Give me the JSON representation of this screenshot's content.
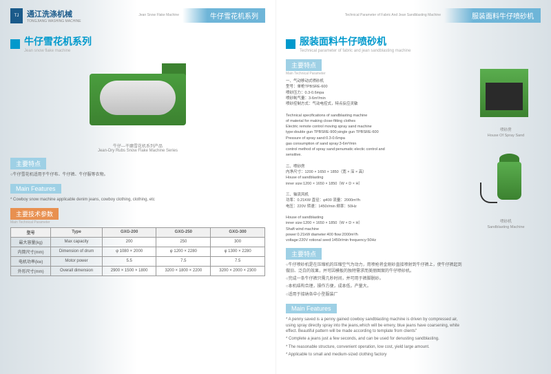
{
  "brand": {
    "cn": "通江洗涤机械",
    "en": "TONGJIANG WASHING MACHINE",
    "logo": "TJ"
  },
  "left": {
    "header": {
      "en": "Jean Snow Flake Machine",
      "cn": "牛仔雪花机系列"
    },
    "title": {
      "cn": "牛仔雪花机系列",
      "en": "Jean snow flake machine"
    },
    "img_caption": {
      "cn": "牛仔—干磨雪花机系列产品",
      "en": "Jean-Dry Rubs Snow Flake Machine Series"
    },
    "features": {
      "label_cn": "主要特点",
      "label_en": "Main Features",
      "text_cn": "○牛仔雪花机适用于牛仔布、牛仔裤、牛仔服等衣物。",
      "text_en": "* Cowboy snow machine applicable denim jeans, cowboy clothing, clothing, etc"
    },
    "params": {
      "label_cn": "主要技术参数",
      "label_en": "Main Technical Parameter"
    },
    "table": {
      "headers": [
        "型号",
        "Type",
        "GXG-200",
        "GXG-250",
        "GXG-300"
      ],
      "rows": [
        [
          "最大容量(kg)",
          "Max capacity",
          "200",
          "250",
          "300"
        ],
        [
          "内筒尺寸(mm)",
          "Dimension of drum",
          "φ 1080 × 2000",
          "φ 1200 × 2280",
          "φ 1300 × 2280"
        ],
        [
          "电机功率(kw)",
          "Motor power",
          "5.5",
          "7.5",
          "7.5"
        ],
        [
          "外形尺寸(mm)",
          "Overall dimension",
          "2900 × 1500 × 1800",
          "3200 × 1800 × 2200",
          "3200 × 2000 × 2300"
        ]
      ]
    }
  },
  "right": {
    "header": {
      "en": "Technical Parameter of Fabric And Jean Sandblasting Machine",
      "cn": "服装面料牛仔喷砂机"
    },
    "title": {
      "cn": "服装面料牛仔喷砂机",
      "en": "Technical parameter of fabric and jean sandblasting machine"
    },
    "features_label": {
      "cn": "主要特点",
      "en": "Main Technical Parameter"
    },
    "spec_block": "一、气动移动式喷砂机\n型号：单枪TPBSRE-600\n喷砂压力：0.3-0.6mpa\n喷砂耗气量：3-6m³/min\n喷砂控制方式：气动电控式，特点反应灵敏\n\nTechnical specifications of sandblasting machine\nof material for making close-fitting clothes\nElectric remote control moving spray sand machine\ntype:double gun TPBSRE-900;single gun TPBSRE-600\nPressure of spray sand:0.3-0.6mpa\ngas consumption of sand spray:3-6m³/min\ncontrol method of spray sand:penumatic electic control and\nsensitive.\n\n二、喷砂房\n内净尺寸：1200 × 1650 × 1850（宽 × 深 × 高）\nHouse of sandblasting\ninner size:1200 × 1650 × 1850（W × D × H）\n\n三、轴流风机\n功率：0.21KW    直径：φ400    流量：2000m³/h\n电压：220V      转速：1450r/min    频率：50Hz\n\nHouse of sandblasting\ninner size:1200 × 1650 × 1850（W × D × H）\nShaft wind machine\npower:0.21kW    diameter:400    flow:2000m³/h\nvoltage:220V    rotional seed:1450r/min    frequency:50Hz",
    "features2": {
      "label_cn": "主要特点",
      "label_en": "Main Features",
      "cn1": "○牛仔喷砂机是在压缩机的压缩空气为动力，用喷枪将金刚砂直接喷射到牛仔裤上，使牛仔裤起到做旧、泛白的效果，并可因模板的独特需求而美丽图案的牛仔喷砂机。",
      "cn2": "○完成一条牛仔裤只需几秒时间，并可用于裤脚脱砂。",
      "cn3": "○本机结构合理，操作方便，成本低，产量大。",
      "cn4": "○适用于接纳各中小型服装厂",
      "en1": "* A penny saved is a penny gained cowboy sandblasting machine is driven by compressed air, using spray directly spray into the jeans,which will be emery, blue jeans have coarsening, white effect. Beautiful pattern will be made according to template from clients\"",
      "en2": "* Complete a jeans just a few seconds, and can be used for denusting sandblasting.",
      "en3": "* The reasonable structure, convenient operation, low cost, yield large amount.",
      "en4": "* Applicable to small and medium-sized clothing factory"
    },
    "booth_caption": {
      "cn": "喷砂房",
      "en": "House Of Spray Sand"
    },
    "sandblast_caption": {
      "cn": "喷砂机",
      "en": "Sandblasting Machine"
    }
  },
  "colors": {
    "primary": "#0099cc",
    "machine_green": "#4a9d3e"
  }
}
